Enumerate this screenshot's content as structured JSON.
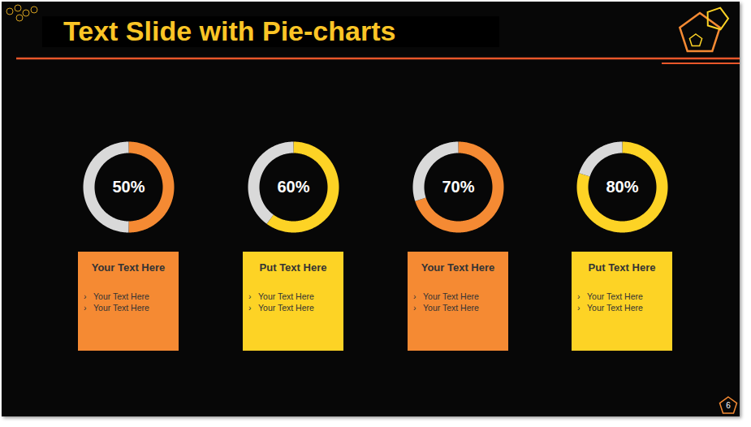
{
  "title": "Text Slide with Pie-charts",
  "page_number": 6,
  "chart_data": [
    {
      "type": "pie",
      "values": [
        50,
        50
      ],
      "colors": [
        "#f58a33",
        "#d9d9d9"
      ],
      "value_labels": [
        "50%",
        null
      ],
      "data_labels": true
    },
    {
      "type": "pie",
      "values": [
        60,
        40
      ],
      "colors": [
        "#fdd325",
        "#d9d9d9"
      ],
      "value_labels": [
        "60%",
        null
      ],
      "data_labels": true
    },
    {
      "type": "pie",
      "values": [
        70,
        30
      ],
      "colors": [
        "#f58a33",
        "#d9d9d9"
      ],
      "value_labels": [
        "70%",
        null
      ],
      "data_labels": true
    },
    {
      "type": "pie",
      "values": [
        80,
        20
      ],
      "colors": [
        "#fdd325",
        "#d9d9d9"
      ],
      "value_labels": [
        "80%",
        null
      ],
      "data_labels": true
    }
  ],
  "cards": [
    {
      "heading": "Your Text Here",
      "bullets": [
        "Your Text Here",
        "Your Text Here"
      ],
      "color": "#f58a33"
    },
    {
      "heading": "Put Text Here",
      "bullets": [
        "Your Text Here",
        "Your Text Here"
      ],
      "color": "#fdd325"
    },
    {
      "heading": "Your Text Here",
      "bullets": [
        "Your Text Here",
        "Your Text Here"
      ],
      "color": "#f58a33"
    },
    {
      "heading": "Put Text Here",
      "bullets": [
        "Your Text Here",
        "Your Text Here"
      ],
      "color": "#fdd325"
    }
  ]
}
